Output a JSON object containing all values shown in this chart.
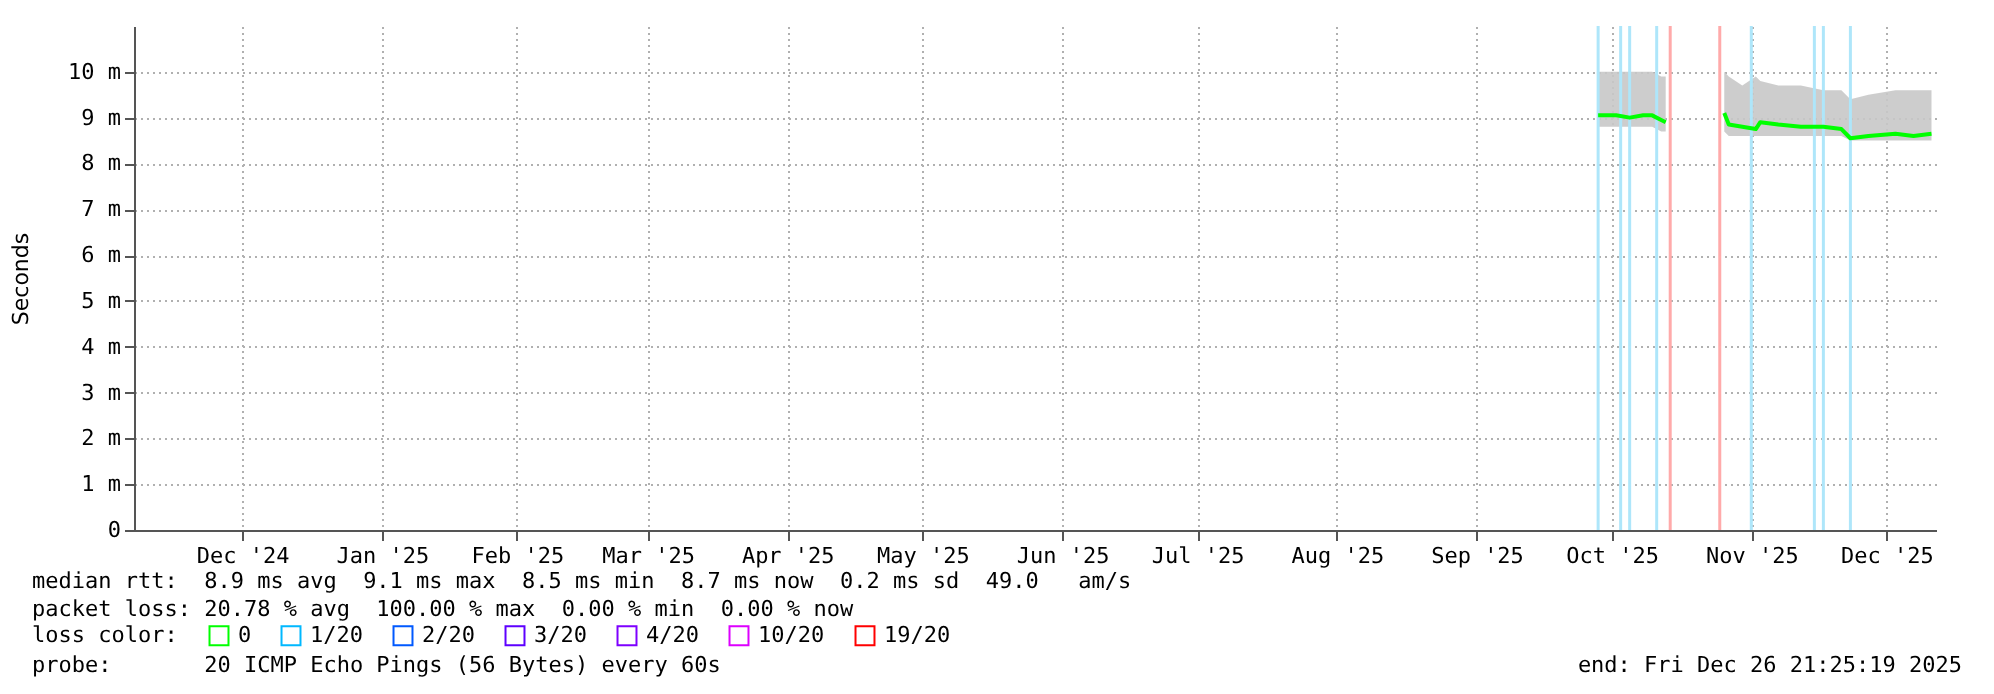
{
  "chart_data": {
    "type": "line",
    "ylabel": "Seconds",
    "legend_title": "loss color:",
    "legend": "bottom",
    "grid": true,
    "xlim": [
      "2024-11-22",
      "2025-12-27"
    ],
    "ylim": [
      0,
      11
    ],
    "yticks": [
      0,
      {
        "value": 1,
        "label": "1 m"
      },
      {
        "value": 2,
        "label": "2 m"
      },
      {
        "value": 3,
        "label": "3 m"
      },
      {
        "value": 4,
        "label": "4 m"
      },
      {
        "value": 5,
        "label": "5 m"
      },
      {
        "value": 6,
        "label": "6 m"
      },
      {
        "value": 7,
        "label": "7 m"
      },
      {
        "value": 8,
        "label": "8 m"
      },
      {
        "value": 9,
        "label": "9 m"
      },
      {
        "value": 10,
        "label": "10 m"
      }
    ],
    "xticks": [
      {
        "value": "2024-12-16",
        "label": "Dec '24"
      },
      {
        "value": "2025-01-16",
        "label": "Jan '25"
      },
      {
        "value": "2025-02-15",
        "label": "Feb '25"
      },
      {
        "value": "2025-03-16",
        "label": "Mar '25"
      },
      {
        "value": "2025-04-16",
        "label": "Apr '25"
      },
      {
        "value": "2025-05-16",
        "label": "May '25"
      },
      {
        "value": "2025-06-16",
        "label": "Jun '25"
      },
      {
        "value": "2025-07-16",
        "label": "Jul '25"
      },
      {
        "value": "2025-08-16",
        "label": "Aug '25"
      },
      {
        "value": "2025-09-16",
        "label": "Sep '25"
      },
      {
        "value": "2025-10-16",
        "label": "Oct '25"
      },
      {
        "value": "2025-11-16",
        "label": "Nov '25"
      },
      {
        "value": "2025-12-16",
        "label": "Dec '25"
      }
    ],
    "x": [
      "2025-10-13",
      "2025-10-17",
      "2025-10-20",
      "2025-10-23",
      "2025-10-25",
      "2025-10-27",
      "2025-10-28",
      "2025-11-01",
      "2025-11-10",
      "2025-11-11",
      "2025-11-14",
      "2025-11-17",
      "2025-11-18",
      "2025-11-22",
      "2025-11-27",
      "2025-12-02",
      "2025-12-06",
      "2025-12-08",
      "2025-12-12",
      "2025-12-18",
      "2025-12-22",
      "2025-12-26"
    ],
    "series": [
      {
        "name": "0",
        "color": "#00ff00",
        "values": [
          9.05,
          9.05,
          9.0,
          9.05,
          9.05,
          8.95,
          8.9,
          null,
          9.1,
          8.85,
          8.8,
          8.75,
          8.9,
          8.85,
          8.8,
          8.8,
          8.75,
          8.55,
          8.6,
          8.65,
          8.6,
          8.65
        ],
        "lower": [
          8.8,
          8.8,
          8.8,
          8.8,
          8.8,
          8.7,
          8.7,
          null,
          8.7,
          8.6,
          8.6,
          8.6,
          8.6,
          8.6,
          8.6,
          8.6,
          8.6,
          8.5,
          8.5,
          8.5,
          8.5,
          8.5
        ],
        "upper": [
          10.0,
          10.0,
          10.0,
          10.0,
          10.0,
          9.9,
          9.9,
          null,
          10.0,
          9.9,
          9.7,
          9.9,
          9.8,
          9.7,
          9.7,
          9.6,
          9.6,
          9.4,
          9.5,
          9.6,
          9.6,
          9.6
        ]
      },
      {
        "name": "1/20",
        "color": "#00b8ff",
        "values": [
          null,
          null,
          null,
          null,
          null,
          null,
          null,
          null,
          null,
          null,
          null,
          null,
          null,
          null,
          null,
          null,
          null,
          null,
          null,
          null,
          null,
          null
        ]
      },
      {
        "name": "2/20",
        "color": "#0059ff",
        "values": [
          null,
          null,
          null,
          null,
          null,
          null,
          null,
          null,
          null,
          null,
          null,
          null,
          null,
          null,
          null,
          null,
          null,
          null,
          null,
          null,
          null,
          null
        ]
      },
      {
        "name": "3/20",
        "color": "#5e00ff",
        "values": [
          null,
          null,
          null,
          null,
          null,
          null,
          null,
          null,
          null,
          null,
          null,
          null,
          null,
          null,
          null,
          null,
          null,
          null,
          null,
          null,
          null,
          null
        ]
      },
      {
        "name": "4/20",
        "color": "#7e00ff",
        "values": [
          null,
          null,
          null,
          null,
          null,
          null,
          null,
          null,
          null,
          null,
          null,
          null,
          null,
          null,
          null,
          null,
          null,
          null,
          null,
          null,
          null,
          null
        ]
      },
      {
        "name": "10/20",
        "color": "#dd00ff",
        "values": [
          null,
          null,
          null,
          null,
          null,
          null,
          null,
          null,
          null,
          null,
          null,
          null,
          null,
          null,
          null,
          null,
          null,
          null,
          null,
          null,
          null,
          null
        ]
      },
      {
        "name": "19/20",
        "color": "#ff0000",
        "values": [
          null,
          null,
          null,
          null,
          null,
          null,
          null,
          null,
          null,
          null,
          null,
          null,
          null,
          null,
          null,
          null,
          null,
          null,
          null,
          null,
          null,
          null
        ]
      }
    ],
    "ref_lines": [
      {
        "axis": "x",
        "value": "2025-10-13",
        "color": "#aee6fa"
      },
      {
        "axis": "x",
        "value": "2025-10-18",
        "color": "#aee6fa"
      },
      {
        "axis": "x",
        "value": "2025-10-20",
        "color": "#aee6fa"
      },
      {
        "axis": "x",
        "value": "2025-10-26",
        "color": "#aee6fa"
      },
      {
        "axis": "x",
        "value": "2025-10-29",
        "color": "#ffaaaa"
      },
      {
        "axis": "x",
        "value": "2025-11-09",
        "color": "#ffaaaa"
      },
      {
        "axis": "x",
        "value": "2025-11-16",
        "color": "#aee6fa"
      },
      {
        "axis": "x",
        "value": "2025-11-30",
        "color": "#aee6fa"
      },
      {
        "axis": "x",
        "value": "2025-12-02",
        "color": "#aee6fa"
      },
      {
        "axis": "x",
        "value": "2025-12-08",
        "color": "#aee6fa"
      }
    ],
    "annotations": [
      "median rtt:  8.9 ms avg  9.1 ms max  8.5 ms min  8.7 ms now  0.2 ms sd  49.0   am/s",
      "packet loss: 20.78 % avg  100.00 % max  0.00 % min  0.00 % now",
      "probe:       20 ICMP Echo Pings (56 Bytes) every 60s",
      "end: Fri Dec 26 21:25:19 2025"
    ]
  }
}
